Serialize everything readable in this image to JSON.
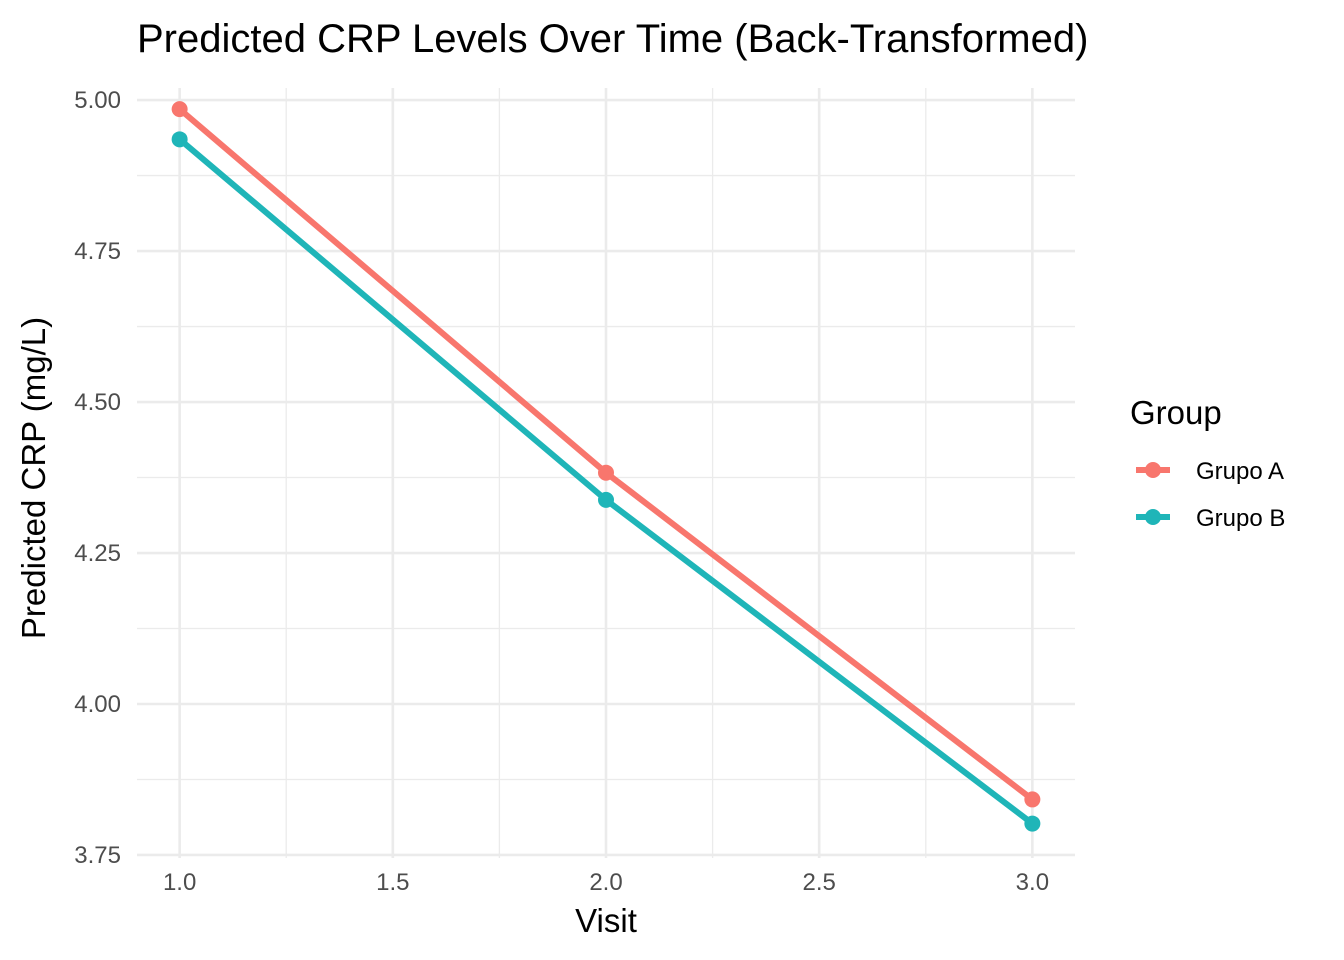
{
  "chart_data": {
    "type": "line",
    "title": "Predicted CRP Levels Over Time (Back-Transformed)",
    "xlabel": "Visit",
    "ylabel": "Predicted CRP (mg/L)",
    "x": [
      1.0,
      2.0,
      3.0
    ],
    "xlim": [
      0.9,
      3.1
    ],
    "ylim": [
      3.745,
      5.02
    ],
    "x_ticks": [
      1.0,
      1.5,
      2.0,
      2.5,
      3.0
    ],
    "x_tick_labels": [
      "1.0",
      "1.5",
      "2.0",
      "2.5",
      "3.0"
    ],
    "x_minor_ticks": [
      1.25,
      1.75,
      2.25,
      2.75
    ],
    "y_ticks": [
      3.75,
      4.0,
      4.25,
      4.5,
      4.75,
      5.0
    ],
    "y_tick_labels": [
      "3.75",
      "4.00",
      "4.25",
      "4.50",
      "4.75",
      "5.00"
    ],
    "y_minor_ticks": [
      3.875,
      4.125,
      4.375,
      4.625,
      4.875
    ],
    "grid": true,
    "legend": {
      "title": "Group",
      "position": "right"
    },
    "series": [
      {
        "name": "Grupo A",
        "color": "#F8766D",
        "values": [
          4.985,
          4.383,
          3.842
        ]
      },
      {
        "name": "Grupo B",
        "color": "#1FB5B8",
        "values": [
          4.935,
          4.338,
          3.802
        ]
      }
    ]
  }
}
